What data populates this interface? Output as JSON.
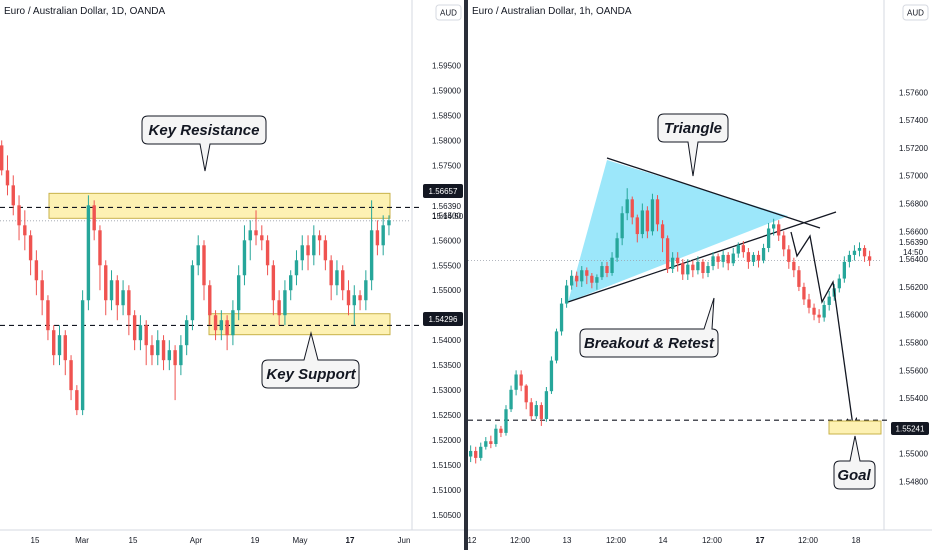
{
  "left_panel": {
    "title": "Euro / Australian Dollar, 1D, OANDA",
    "currency": "AUD",
    "price_tags": {
      "resistance": "1.56657",
      "support": "1.54296"
    },
    "last_price": "1.56390",
    "countdown": "15:14:50",
    "annotations": {
      "resistance": "Key Resistance",
      "support": "Key Support"
    }
  },
  "right_panel": {
    "title": "Euro / Australian Dollar, 1h, OANDA",
    "currency": "AUD",
    "price_tags": {
      "goal": "1.55241"
    },
    "last_price": "1.56390",
    "countdown": "14:50",
    "annotations": {
      "triangle": "Triangle",
      "breakout": "Breakout & Retest",
      "goal": "Goal"
    }
  },
  "colors": {
    "up": "#26a69a",
    "down": "#ef5350",
    "zone": "#fdf1b3",
    "triangle": "#8be3f9",
    "tag": "#131722"
  },
  "chart_data": [
    {
      "type": "candlestick",
      "title": "Euro / Australian Dollar, 1D, OANDA",
      "ylim": [
        1.5038,
        1.6005
      ],
      "y_ticks": [
        "1.59500",
        "1.59000",
        "1.58500",
        "1.58000",
        "1.57500",
        "1.57000",
        "1.56500",
        "1.56000",
        "1.55500",
        "1.55000",
        "1.54500",
        "1.54000",
        "1.53500",
        "1.53000",
        "1.52500",
        "1.52000",
        "1.51500",
        "1.51000",
        "1.50500"
      ],
      "x_ticks": [
        "15",
        "Mar",
        "15",
        "Apr",
        "19",
        "May",
        "17",
        "Jun"
      ],
      "resistance_zone": [
        1.5644,
        1.5694
      ],
      "support_zone": [
        1.5411,
        1.5453
      ],
      "resistance_level": 1.56657,
      "support_level": 1.54296,
      "last_price": 1.5639,
      "candles": [
        [
          1.579,
          1.574,
          1.58,
          1.573
        ],
        [
          1.574,
          1.571,
          1.577,
          1.569
        ],
        [
          1.571,
          1.567,
          1.573,
          1.565
        ],
        [
          1.567,
          1.563,
          1.569,
          1.56
        ],
        [
          1.563,
          1.561,
          1.566,
          1.558
        ],
        [
          1.561,
          1.556,
          1.562,
          1.553
        ],
        [
          1.556,
          1.552,
          1.558,
          1.549
        ],
        [
          1.552,
          1.548,
          1.554,
          1.545
        ],
        [
          1.548,
          1.542,
          1.549,
          1.54
        ],
        [
          1.542,
          1.537,
          1.543,
          1.535
        ],
        [
          1.537,
          1.541,
          1.543,
          1.535
        ],
        [
          1.541,
          1.536,
          1.542,
          1.533
        ],
        [
          1.536,
          1.53,
          1.537,
          1.528
        ],
        [
          1.53,
          1.526,
          1.531,
          1.525
        ],
        [
          1.526,
          1.548,
          1.55,
          1.525
        ],
        [
          1.548,
          1.567,
          1.569,
          1.546
        ],
        [
          1.567,
          1.562,
          1.568,
          1.56
        ],
        [
          1.562,
          1.555,
          1.563,
          1.55
        ],
        [
          1.555,
          1.548,
          1.556,
          1.545
        ],
        [
          1.548,
          1.552,
          1.554,
          1.546
        ],
        [
          1.552,
          1.547,
          1.553,
          1.544
        ],
        [
          1.547,
          1.55,
          1.552,
          1.545
        ],
        [
          1.55,
          1.545,
          1.551,
          1.541
        ],
        [
          1.545,
          1.54,
          1.546,
          1.538
        ],
        [
          1.54,
          1.543,
          1.545,
          1.538
        ],
        [
          1.543,
          1.539,
          1.544,
          1.535
        ],
        [
          1.539,
          1.537,
          1.541,
          1.535
        ],
        [
          1.537,
          1.54,
          1.542,
          1.535
        ],
        [
          1.54,
          1.536,
          1.541,
          1.534
        ],
        [
          1.536,
          1.538,
          1.54,
          1.534
        ],
        [
          1.538,
          1.535,
          1.539,
          1.528
        ],
        [
          1.535,
          1.539,
          1.541,
          1.533
        ],
        [
          1.539,
          1.544,
          1.545,
          1.537
        ],
        [
          1.544,
          1.555,
          1.556,
          1.542
        ],
        [
          1.555,
          1.559,
          1.561,
          1.553
        ],
        [
          1.559,
          1.551,
          1.56,
          1.548
        ],
        [
          1.551,
          1.545,
          1.552,
          1.543
        ],
        [
          1.545,
          1.542,
          1.546,
          1.54
        ],
        [
          1.542,
          1.544,
          1.546,
          1.54
        ],
        [
          1.544,
          1.541,
          1.545,
          1.538
        ],
        [
          1.541,
          1.546,
          1.548,
          1.539
        ],
        [
          1.546,
          1.553,
          1.555,
          1.544
        ],
        [
          1.553,
          1.56,
          1.563,
          1.551
        ],
        [
          1.56,
          1.562,
          1.564,
          1.556
        ],
        [
          1.562,
          1.561,
          1.566,
          1.559
        ],
        [
          1.561,
          1.56,
          1.563,
          1.558
        ],
        [
          1.56,
          1.555,
          1.561,
          1.553
        ],
        [
          1.555,
          1.548,
          1.556,
          1.545
        ],
        [
          1.548,
          1.545,
          1.55,
          1.543
        ],
        [
          1.545,
          1.55,
          1.552,
          1.543
        ],
        [
          1.55,
          1.553,
          1.554,
          1.548
        ],
        [
          1.553,
          1.556,
          1.558,
          1.551
        ],
        [
          1.556,
          1.559,
          1.561,
          1.554
        ],
        [
          1.559,
          1.557,
          1.561,
          1.554
        ],
        [
          1.557,
          1.561,
          1.563,
          1.555
        ],
        [
          1.561,
          1.56,
          1.562,
          1.557
        ],
        [
          1.56,
          1.556,
          1.561,
          1.554
        ],
        [
          1.556,
          1.551,
          1.557,
          1.548
        ],
        [
          1.551,
          1.554,
          1.556,
          1.549
        ],
        [
          1.554,
          1.55,
          1.555,
          1.548
        ],
        [
          1.55,
          1.547,
          1.552,
          1.545
        ],
        [
          1.547,
          1.549,
          1.551,
          1.543
        ],
        [
          1.549,
          1.548,
          1.55,
          1.546
        ],
        [
          1.548,
          1.552,
          1.554,
          1.546
        ],
        [
          1.552,
          1.562,
          1.568,
          1.55
        ],
        [
          1.562,
          1.559,
          1.564,
          1.557
        ],
        [
          1.559,
          1.563,
          1.565,
          1.557
        ],
        [
          1.563,
          1.564,
          1.565,
          1.561
        ]
      ]
    },
    {
      "type": "candlestick",
      "title": "Euro / Australian Dollar, 1h, OANDA",
      "ylim": [
        1.5466,
        1.5794
      ],
      "y_ticks": [
        "1.57600",
        "1.57400",
        "1.57200",
        "1.57000",
        "1.56800",
        "1.56600",
        "1.56400",
        "1.56200",
        "1.56000",
        "1.55800",
        "1.55600",
        "1.55400",
        "1.55200",
        "1.55000",
        "1.54800"
      ],
      "x_ticks": [
        "12",
        "12:00",
        "13",
        "12:00",
        "14",
        "12:00",
        "17",
        "12:00",
        "18"
      ],
      "goal_level": 1.55241,
      "last_price": 1.5639,
      "candles": [
        [
          1.5498,
          1.5502,
          1.5506,
          1.5494
        ],
        [
          1.5502,
          1.5497,
          1.5505,
          1.5493
        ],
        [
          1.5497,
          1.5505,
          1.5508,
          1.5495
        ],
        [
          1.5505,
          1.5509,
          1.5512,
          1.5503
        ],
        [
          1.5509,
          1.5507,
          1.5513,
          1.5504
        ],
        [
          1.5507,
          1.5518,
          1.5521,
          1.5505
        ],
        [
          1.5518,
          1.5515,
          1.552,
          1.5512
        ],
        [
          1.5515,
          1.5532,
          1.5535,
          1.5513
        ],
        [
          1.5532,
          1.5546,
          1.5549,
          1.553
        ],
        [
          1.5546,
          1.5557,
          1.556,
          1.5542
        ],
        [
          1.5557,
          1.5549,
          1.556,
          1.5545
        ],
        [
          1.5549,
          1.5537,
          1.555,
          1.5532
        ],
        [
          1.5537,
          1.5527,
          1.554,
          1.5524
        ],
        [
          1.5527,
          1.5535,
          1.5538,
          1.5525
        ],
        [
          1.5535,
          1.5525,
          1.5537,
          1.552
        ],
        [
          1.5525,
          1.5545,
          1.5548,
          1.5523
        ],
        [
          1.5545,
          1.5567,
          1.557,
          1.5543
        ],
        [
          1.5567,
          1.5588,
          1.559,
          1.5565
        ],
        [
          1.5588,
          1.5608,
          1.5612,
          1.5585
        ],
        [
          1.5608,
          1.5621,
          1.5625,
          1.5605
        ],
        [
          1.5621,
          1.5628,
          1.5632,
          1.5618
        ],
        [
          1.5628,
          1.5624,
          1.5631,
          1.562
        ],
        [
          1.5624,
          1.5632,
          1.5635,
          1.562
        ],
        [
          1.5632,
          1.5628,
          1.5634,
          1.5622
        ],
        [
          1.5628,
          1.5623,
          1.563,
          1.5619
        ],
        [
          1.5623,
          1.5627,
          1.5629,
          1.5618
        ],
        [
          1.5627,
          1.5635,
          1.5638,
          1.5625
        ],
        [
          1.5635,
          1.563,
          1.5638,
          1.5627
        ],
        [
          1.563,
          1.5641,
          1.5645,
          1.5628
        ],
        [
          1.5641,
          1.5655,
          1.5659,
          1.5638
        ],
        [
          1.5655,
          1.5673,
          1.5678,
          1.565
        ],
        [
          1.5673,
          1.5683,
          1.5691,
          1.5668
        ],
        [
          1.5683,
          1.567,
          1.5685,
          1.5665
        ],
        [
          1.567,
          1.5658,
          1.5672,
          1.5652
        ],
        [
          1.5658,
          1.5675,
          1.568,
          1.5655
        ],
        [
          1.5675,
          1.566,
          1.5678,
          1.5655
        ],
        [
          1.566,
          1.5683,
          1.5687,
          1.5657
        ],
        [
          1.5683,
          1.5665,
          1.5686,
          1.566
        ],
        [
          1.5665,
          1.5655,
          1.5668,
          1.5645
        ],
        [
          1.5655,
          1.5633,
          1.5657,
          1.563
        ],
        [
          1.5633,
          1.5641,
          1.5645,
          1.563
        ],
        [
          1.5641,
          1.5637,
          1.5645,
          1.5631
        ],
        [
          1.5637,
          1.5629,
          1.564,
          1.5625
        ],
        [
          1.5629,
          1.5636,
          1.564,
          1.5625
        ],
        [
          1.5636,
          1.5632,
          1.5639,
          1.5627
        ],
        [
          1.5632,
          1.5638,
          1.5642,
          1.5629
        ],
        [
          1.5638,
          1.563,
          1.564,
          1.5626
        ],
        [
          1.563,
          1.5635,
          1.5638,
          1.5627
        ],
        [
          1.5635,
          1.5642,
          1.5645,
          1.5632
        ],
        [
          1.5642,
          1.5638,
          1.5644,
          1.5633
        ],
        [
          1.5638,
          1.5643,
          1.5646,
          1.5634
        ],
        [
          1.5643,
          1.5637,
          1.5645,
          1.5632
        ],
        [
          1.5637,
          1.5644,
          1.5648,
          1.5635
        ],
        [
          1.5644,
          1.565,
          1.5652,
          1.5641
        ],
        [
          1.565,
          1.5645,
          1.5653,
          1.5641
        ],
        [
          1.5645,
          1.5638,
          1.5648,
          1.5633
        ],
        [
          1.5638,
          1.5643,
          1.5645,
          1.5635
        ],
        [
          1.5643,
          1.5639,
          1.5646,
          1.5634
        ],
        [
          1.5639,
          1.5648,
          1.5651,
          1.5637
        ],
        [
          1.5648,
          1.5662,
          1.5666,
          1.5645
        ],
        [
          1.5662,
          1.5665,
          1.5669,
          1.5657
        ],
        [
          1.5665,
          1.5657,
          1.5668,
          1.5653
        ],
        [
          1.5657,
          1.5647,
          1.566,
          1.5642
        ],
        [
          1.5647,
          1.5638,
          1.565,
          1.5633
        ],
        [
          1.5638,
          1.5632,
          1.5641,
          1.5627
        ],
        [
          1.5632,
          1.562,
          1.5635,
          1.5617
        ],
        [
          1.562,
          1.5611,
          1.5623,
          1.5607
        ],
        [
          1.5611,
          1.5605,
          1.5615,
          1.5601
        ],
        [
          1.5605,
          1.56,
          1.5608,
          1.5596
        ],
        [
          1.56,
          1.5598,
          1.5604,
          1.5594
        ],
        [
          1.5598,
          1.5607,
          1.561,
          1.5595
        ],
        [
          1.5607,
          1.5613,
          1.5617,
          1.5603
        ],
        [
          1.5613,
          1.5619,
          1.5622,
          1.561
        ],
        [
          1.5619,
          1.5626,
          1.5629,
          1.5616
        ],
        [
          1.5626,
          1.5638,
          1.5642,
          1.5623
        ],
        [
          1.5638,
          1.5643,
          1.5646,
          1.5634
        ],
        [
          1.5643,
          1.5646,
          1.565,
          1.5639
        ],
        [
          1.5646,
          1.5648,
          1.5652,
          1.5642
        ],
        [
          1.5648,
          1.5642,
          1.565,
          1.5638
        ],
        [
          1.5642,
          1.5639,
          1.5646,
          1.5635
        ]
      ]
    }
  ]
}
